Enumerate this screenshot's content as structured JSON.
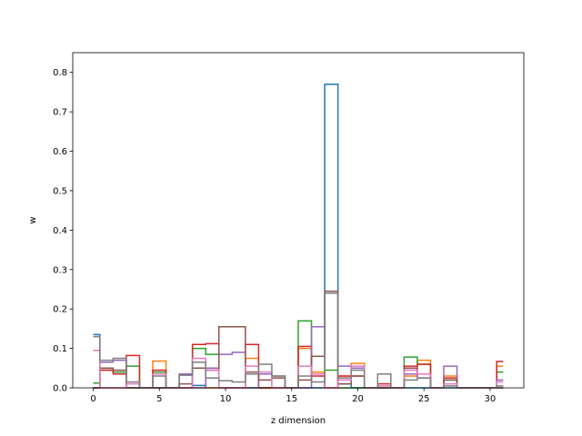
{
  "chart_data": {
    "type": "step",
    "xlabel": "z dimension",
    "ylabel": "w",
    "xlim": [
      -1.55,
      32.55
    ],
    "ylim": [
      0,
      0.85
    ],
    "xticks": [
      0,
      5,
      10,
      15,
      20,
      25,
      30
    ],
    "yticks": [
      0.0,
      0.1,
      0.2,
      0.3,
      0.4,
      0.5,
      0.6,
      0.7,
      0.8
    ],
    "xtick_labels": [
      "0",
      "5",
      "10",
      "15",
      "20",
      "25",
      "30"
    ],
    "ytick_labels": [
      "0.0",
      "0.1",
      "0.2",
      "0.3",
      "0.4",
      "0.5",
      "0.6",
      "0.7",
      "0.8"
    ],
    "grid": false,
    "series": [
      {
        "color": "#1f77b4",
        "values": [
          0.135,
          0,
          0,
          0,
          0,
          0,
          0,
          0,
          0.006,
          0,
          0,
          0,
          0,
          0,
          0,
          0,
          0,
          0,
          0.77,
          0.01,
          0,
          0,
          0,
          0,
          0,
          0,
          0,
          0,
          0,
          0,
          0,
          0
        ]
      },
      {
        "color": "#ff7f0e",
        "values": [
          0,
          0,
          0,
          0,
          0,
          0.068,
          0,
          0,
          0,
          0,
          0,
          0,
          0.075,
          0,
          0,
          0,
          0.1,
          0.04,
          0,
          0.03,
          0.062,
          0,
          0,
          0,
          0.03,
          0.07,
          0,
          0.03,
          0,
          0,
          0,
          0.055
        ]
      },
      {
        "color": "#2ca02c",
        "values": [
          0.012,
          0.045,
          0.04,
          0.055,
          0,
          0.04,
          0,
          0,
          0.1,
          0.085,
          0,
          0,
          0,
          0,
          0,
          0,
          0.17,
          0.035,
          0.045,
          0,
          0,
          0,
          0,
          0,
          0.078,
          0.06,
          0,
          0.02,
          0,
          0,
          0,
          0.04
        ]
      },
      {
        "color": "#d62728",
        "values": [
          0,
          0.045,
          0.035,
          0.082,
          0,
          0.045,
          0,
          0,
          0.11,
          0.112,
          0,
          0,
          0.11,
          0,
          0,
          0,
          0.105,
          0.03,
          0,
          0.03,
          0.03,
          0,
          0.01,
          0,
          0.055,
          0.06,
          0,
          0.025,
          0,
          0,
          0,
          0.067
        ]
      },
      {
        "color": "#9467bd",
        "values": [
          0,
          0.065,
          0.07,
          0,
          0,
          0,
          0,
          0.035,
          0,
          0.05,
          0.085,
          0.09,
          0,
          0.035,
          0.03,
          0,
          0,
          0.155,
          0.24,
          0.055,
          0.05,
          0,
          0,
          0,
          0.035,
          0.025,
          0,
          0.055,
          0,
          0,
          0,
          0.02
        ]
      },
      {
        "color": "#8c564b",
        "values": [
          0,
          0.05,
          0.045,
          0,
          0,
          0,
          0,
          0.01,
          0.05,
          0.045,
          0.155,
          0.155,
          0.04,
          0.02,
          0.025,
          0,
          0.02,
          0.08,
          0.245,
          0.01,
          0.03,
          0,
          0,
          0,
          0.05,
          0.035,
          0,
          0.02,
          0,
          0,
          0,
          0
        ]
      },
      {
        "color": "#e377c2",
        "values": [
          0.095,
          0,
          0,
          0.01,
          0,
          0.035,
          0,
          0,
          0.075,
          0.045,
          0,
          0,
          0.055,
          0.04,
          0,
          0,
          0.055,
          0.035,
          0,
          0.02,
          0.055,
          0,
          0.005,
          0,
          0.045,
          0.035,
          0,
          0.01,
          0,
          0,
          0,
          0.015
        ]
      },
      {
        "color": "#7f7f7f",
        "values": [
          0.13,
          0.07,
          0.075,
          0.015,
          0,
          0.03,
          0,
          0.032,
          0.065,
          0.025,
          0.018,
          0.015,
          0.035,
          0.06,
          0.03,
          0,
          0.03,
          0.015,
          0.24,
          0.025,
          0.045,
          0,
          0.035,
          0,
          0.02,
          0.025,
          0,
          0.005,
          0,
          0,
          0,
          0.005
        ]
      }
    ]
  }
}
